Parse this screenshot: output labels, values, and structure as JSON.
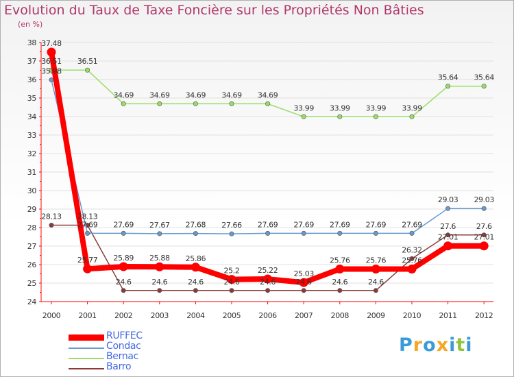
{
  "chart_data": {
    "type": "line",
    "title": "Evolution du Taux de Taxe Foncière sur les Propriétés Non Bâties",
    "ylabel": "(en %)",
    "xlabel": "",
    "ylim": [
      24,
      38
    ],
    "yticks": [
      "24",
      "25",
      "26",
      "27",
      "28",
      "29",
      "30",
      "31",
      "32",
      "33",
      "34",
      "35",
      "36",
      "37",
      "38"
    ],
    "categories": [
      "2000",
      "2001",
      "2002",
      "2003",
      "2004",
      "2005",
      "2006",
      "2007",
      "2008",
      "2009",
      "2010",
      "2011",
      "2012"
    ],
    "series": [
      {
        "name": "RUFFEC",
        "color": "#ff0000",
        "values": [
          37.48,
          25.77,
          25.89,
          25.88,
          25.86,
          25.2,
          25.22,
          25.03,
          25.76,
          25.76,
          25.76,
          27.01,
          27.01
        ],
        "labels": [
          "37.48",
          "25.77",
          "25.89",
          "25.88",
          "25.86",
          "25.2",
          "25.22",
          "25.03",
          "25.76",
          "25.76",
          "25.76",
          "27.01",
          "27.01"
        ]
      },
      {
        "name": "Condac",
        "color": "#6699cc",
        "values": [
          35.98,
          27.69,
          27.69,
          27.67,
          27.68,
          27.66,
          27.69,
          27.69,
          27.69,
          27.69,
          27.69,
          29.03,
          29.03
        ],
        "labels": [
          "35.98",
          "27.69",
          "27.69",
          "27.67",
          "27.68",
          "27.66",
          "27.69",
          "27.69",
          "27.69",
          "27.69",
          "27.69",
          "29.03",
          "29.03"
        ]
      },
      {
        "name": "Bernac",
        "color": "#99dd66",
        "values": [
          36.51,
          36.51,
          34.69,
          34.69,
          34.69,
          34.69,
          34.69,
          33.99,
          33.99,
          33.99,
          33.99,
          35.64,
          35.64
        ],
        "labels": [
          "36.51",
          "36.51",
          "34.69",
          "34.69",
          "34.69",
          "34.69",
          "34.69",
          "33.99",
          "33.99",
          "33.99",
          "33.99",
          "35.64",
          "35.64"
        ]
      },
      {
        "name": "Barro",
        "color": "#8b3a3a",
        "values": [
          28.13,
          28.13,
          24.6,
          24.6,
          24.6,
          24.6,
          24.6,
          24.6,
          24.6,
          24.6,
          26.32,
          27.6,
          27.6
        ],
        "labels": [
          "28.13",
          "28.13",
          "24.6",
          "24.6",
          "24.6",
          "24.6",
          "24.6",
          "24.6",
          "24.6",
          "24.6",
          "26.32",
          "27.6",
          "27.6"
        ]
      }
    ]
  },
  "logo": {
    "text": "Proxiti",
    "colors": [
      "#3a9bd9",
      "#f5a623",
      "#3a9bd9",
      "#f5a623",
      "#3a9bd9",
      "#8fc43a",
      "#3a9bd9"
    ]
  }
}
